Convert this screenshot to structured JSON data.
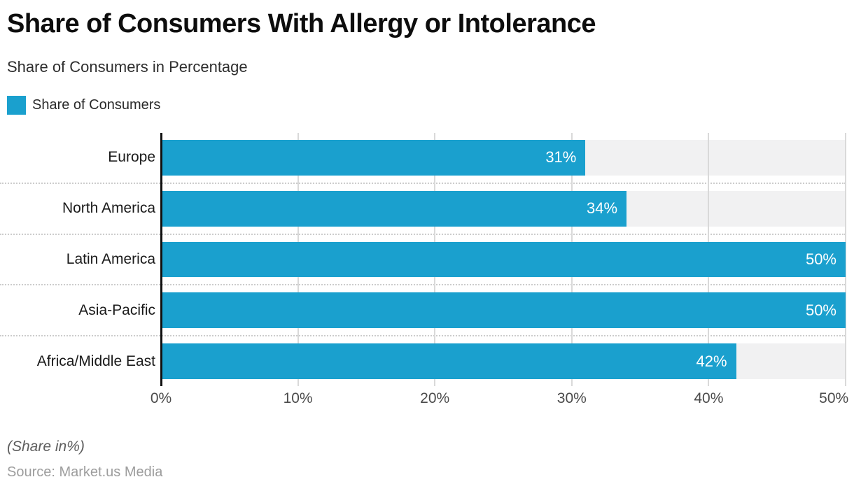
{
  "header": {
    "title": "Share of Consumers With Allergy or Intolerance",
    "subtitle": "Share of Consumers in Percentage"
  },
  "legend": {
    "label": "Share of Consumers"
  },
  "footer": {
    "note": "(Share in%)",
    "source": "Source: Market.us Media"
  },
  "colors": {
    "bar": "#1aa0ce",
    "track": "#f1f1f2",
    "axis": "#111111",
    "gridline": "#d9d9d9",
    "separator": "#cccccc"
  },
  "chart_data": {
    "type": "bar",
    "orientation": "horizontal",
    "title": "Share of Consumers With Allergy or Intolerance",
    "subtitle": "Share of Consumers in Percentage",
    "categories": [
      "Europe",
      "North America",
      "Latin America",
      "Asia-Pacific",
      "Africa/Middle East"
    ],
    "series": [
      {
        "name": "Share of Consumers",
        "values": [
          31,
          34,
          50,
          50,
          42
        ]
      }
    ],
    "values": [
      31,
      34,
      50,
      50,
      42
    ],
    "value_labels": [
      "31%",
      "34%",
      "50%",
      "50%",
      "42%"
    ],
    "x_ticks": [
      "0%",
      "10%",
      "20%",
      "30%",
      "40%",
      "50%"
    ],
    "xlim": [
      0,
      50
    ],
    "xlabel": "",
    "ylabel": "",
    "bar_color": "#1aa0ce",
    "track_color": "#f1f1f2",
    "grid": "vertical light gridlines at 10% steps, dotted horizontal row separators",
    "legend_position": "top-left",
    "value_label_position": "inside-end",
    "footnote": "(Share in%)",
    "source": "Source: Market.us Media"
  }
}
